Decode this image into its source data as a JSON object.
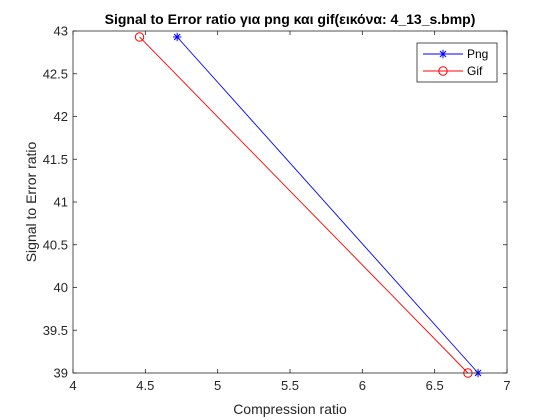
{
  "chart_data": {
    "type": "line",
    "title": "Signal to Error ratio για png και gif(εικόνα: 4_13_s.bmp)",
    "xlabel": "Compression ratio",
    "ylabel": "Signal to Error ratio",
    "xlim": [
      4,
      7
    ],
    "ylim": [
      39,
      43
    ],
    "xticks": [
      4,
      4.5,
      5,
      5.5,
      6,
      6.5,
      7
    ],
    "yticks": [
      39,
      39.5,
      40,
      40.5,
      41,
      41.5,
      42,
      42.5,
      43
    ],
    "xtick_labels": [
      "4",
      "4.5",
      "5",
      "5.5",
      "6",
      "6.5",
      "7"
    ],
    "ytick_labels": [
      "39",
      "39.5",
      "40",
      "40.5",
      "41",
      "41.5",
      "42",
      "42.5",
      "43"
    ],
    "grid": false,
    "legend_position": "top-right",
    "series": [
      {
        "name": "Png",
        "color": "#0000ff",
        "marker": "asterisk",
        "x": [
          4.72,
          6.8
        ],
        "y": [
          42.93,
          39
        ]
      },
      {
        "name": "Gif",
        "color": "#ff0000",
        "marker": "circle",
        "x": [
          4.46,
          6.73
        ],
        "y": [
          42.93,
          39
        ]
      }
    ]
  }
}
